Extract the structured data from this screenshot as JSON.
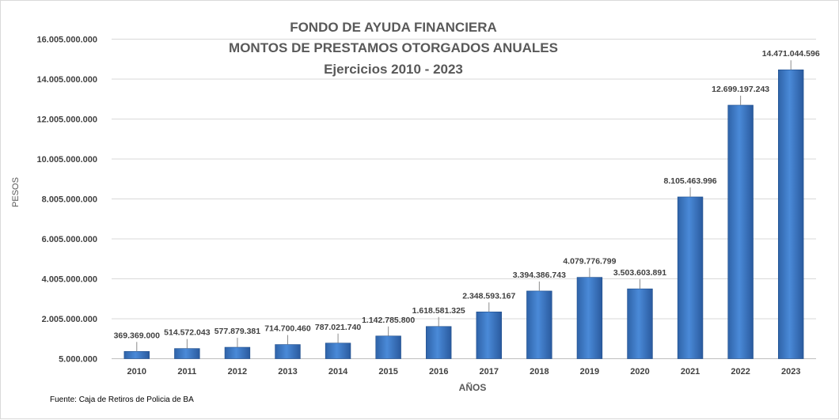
{
  "chart_data": {
    "type": "bar",
    "title": [
      "FONDO DE AYUDA FINANCIERA",
      "MONTOS DE PRESTAMOS OTORGADOS ANUALES",
      "Ejercicios 2010 - 2023"
    ],
    "xlabel": "AÑOS",
    "ylabel": "PESOS",
    "categories": [
      "2010",
      "2011",
      "2012",
      "2013",
      "2014",
      "2015",
      "2016",
      "2017",
      "2018",
      "2019",
      "2020",
      "2021",
      "2022",
      "2023"
    ],
    "values": [
      369369000,
      514572043,
      577879381,
      714700460,
      787021740,
      1142785800,
      1618581325,
      2348593167,
      3394386743,
      4079776799,
      3503603891,
      8105463996,
      12699197243,
      14471044596
    ],
    "value_labels": [
      "369.369.000",
      "514.572.043",
      "577.879.381",
      "714.700.460",
      "787.021.740",
      "1.142.785.800",
      "1.618.581.325",
      "2.348.593.167",
      "3.394.386.743",
      "4.079.776.799",
      "3.503.603.891",
      "8.105.463.996",
      "12.699.197.243",
      "14.471.044.596"
    ],
    "yticks": [
      5000000,
      2005000000,
      4005000000,
      6005000000,
      8005000000,
      10005000000,
      12005000000,
      14005000000,
      16005000000
    ],
    "ytick_labels": [
      "5.000.000",
      "2.005.000.000",
      "4.005.000.000",
      "6.005.000.000",
      "8.005.000.000",
      "10.005.000.000",
      "12.005.000.000",
      "14.005.000.000",
      "16.005.000.000"
    ],
    "ylim": [
      5000000,
      16005000000
    ],
    "grid": true,
    "bar_color": "#3a78c8"
  },
  "source": "Fuente: Caja de Retiros de Policia de BA"
}
